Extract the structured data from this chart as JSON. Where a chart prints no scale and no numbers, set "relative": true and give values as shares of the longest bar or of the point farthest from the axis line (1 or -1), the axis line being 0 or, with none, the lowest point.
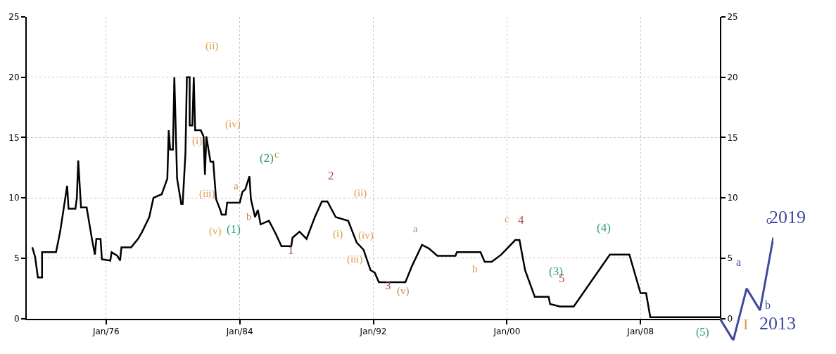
{
  "chart_data": [
    {
      "type": "line",
      "xlim": [
        "1971-04",
        "2012-10"
      ],
      "xticks": [
        {
          "value": "1976-01",
          "label": "Jan/76"
        },
        {
          "value": "1984-01",
          "label": "Jan/84"
        },
        {
          "value": "1992-01",
          "label": "Jan/92"
        },
        {
          "value": "2000-01",
          "label": "Jan/00"
        },
        {
          "value": "2008-01",
          "label": "Jan/08"
        }
      ],
      "ylim": [
        0,
        25
      ],
      "yticks": [
        0,
        5,
        10,
        15,
        20,
        25
      ],
      "y2lim": [
        0,
        25
      ],
      "y2ticks": [
        0,
        5,
        10,
        15,
        20,
        25
      ],
      "grid": true,
      "marker": "none",
      "line_style": "solid",
      "series": [
        {
          "color": "#000000",
          "x": [
            "1971-08",
            "1971-10",
            "1971-12",
            "1972-03",
            "1972-03",
            "1973-01",
            "1973-04",
            "1973-09",
            "1973-10",
            "1974-03",
            "1974-04",
            "1974-05",
            "1974-07",
            "1974-11",
            "1975-03",
            "1975-05",
            "1975-06",
            "1975-09",
            "1975-10",
            "1976-04",
            "1976-05",
            "1976-09",
            "1976-11",
            "1976-12",
            "1977-07",
            "1977-12",
            "1978-03",
            "1978-08",
            "1978-11",
            "1979-05",
            "1979-09",
            "1979-10",
            "1979-11",
            "1980-01",
            "1980-02",
            "1980-04",
            "1980-07",
            "1980-08",
            "1980-10",
            "1980-11",
            "1981-01",
            "1981-01",
            "1981-03",
            "1981-04",
            "1981-05",
            "1981-09",
            "1981-11",
            "1981-12",
            "1982-01",
            "1982-04",
            "1982-06",
            "1982-08",
            "1982-11",
            "1982-12",
            "1983-03",
            "1983-04",
            "1984-01",
            "1984-03",
            "1984-05",
            "1984-08",
            "1984-09",
            "1984-12",
            "1985-02",
            "1985-04",
            "1985-10",
            "1986-03",
            "1986-07",
            "1987-02",
            "1987-03",
            "1987-08",
            "1988-01",
            "1988-07",
            "1988-12",
            "1989-04",
            "1989-10",
            "1990-07",
            "1991-01",
            "1991-06",
            "1991-11",
            "1992-02",
            "1992-05",
            "1993-12",
            "1994-05",
            "1994-12",
            "1995-05",
            "1995-11",
            "1996-12",
            "1997-01",
            "1998-06",
            "1998-09",
            "1999-02",
            "1999-09",
            "2000-07",
            "2000-10",
            "2001-02",
            "2001-09",
            "2002-07",
            "2002-08",
            "2003-03",
            "2004-01",
            "2006-03",
            "2007-05",
            "2008-01",
            "2008-05",
            "2008-08",
            "2012-10"
          ],
          "values": [
            5.9,
            5.1,
            3.4,
            3.4,
            5.5,
            5.5,
            7.2,
            11.0,
            9.1,
            9.1,
            10.0,
            13.1,
            9.2,
            9.2,
            6.5,
            5.3,
            6.6,
            6.6,
            4.9,
            4.8,
            5.5,
            5.2,
            4.8,
            5.9,
            5.9,
            6.6,
            7.2,
            8.4,
            10.0,
            10.3,
            11.6,
            15.6,
            14.0,
            14.0,
            20.0,
            11.6,
            9.5,
            9.5,
            13.7,
            20.0,
            20.0,
            16.0,
            16.0,
            20.0,
            15.6,
            15.6,
            15.1,
            11.9,
            15.1,
            13.0,
            13.0,
            9.9,
            9.0,
            8.6,
            8.6,
            9.6,
            9.6,
            10.5,
            10.7,
            11.8,
            9.9,
            8.4,
            9.0,
            7.8,
            8.1,
            7.0,
            6.0,
            6.0,
            6.7,
            7.2,
            6.6,
            8.4,
            9.7,
            9.7,
            8.4,
            8.1,
            6.3,
            5.7,
            4.0,
            3.8,
            3.0,
            3.0,
            4.4,
            6.1,
            5.8,
            5.2,
            5.2,
            5.5,
            5.5,
            4.7,
            4.7,
            5.3,
            6.5,
            6.5,
            4.0,
            1.8,
            1.8,
            1.2,
            1.0,
            1.0,
            5.3,
            5.3,
            2.1,
            2.1,
            0.1,
            0.1
          ]
        }
      ],
      "annotations": [
        "(ii)",
        "(iv)",
        "(i)",
        "(iii)",
        "(v)",
        "(1)",
        "a",
        "b",
        "(2)",
        "c",
        "1",
        "2",
        "(ii)",
        "(i)",
        "(iv)",
        "(iii)",
        "3",
        "(v)",
        "a",
        "b",
        "c",
        "4",
        "(3)",
        "5",
        "(4)",
        "(5)",
        "I",
        "2013",
        "a",
        "b",
        "c",
        "2019"
      ]
    },
    {
      "type": "line",
      "categories": [
        null,
        null,
        null,
        null,
        null
      ],
      "relative": true,
      "series": [
        {
          "color": "#3f4aa0",
          "values": [
            0,
            -0.27,
            0.37,
            0.1,
            1
          ]
        }
      ]
    }
  ]
}
